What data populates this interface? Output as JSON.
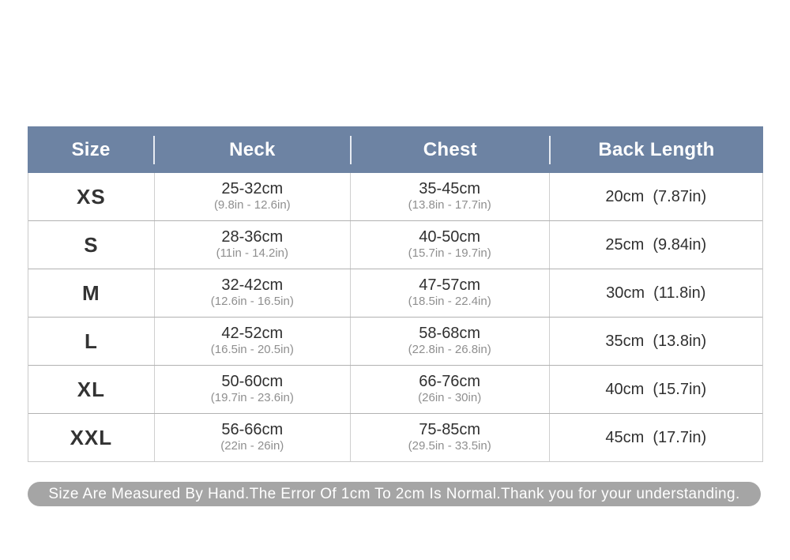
{
  "colors": {
    "header_bg": "#6d83a3",
    "header_text": "#ffffff",
    "row_border": "#b2b2b2",
    "footer_bg": "#a5a5a5",
    "main_text": "#303030",
    "sub_text": "#8f8f8f"
  },
  "table": {
    "headers": {
      "size": "Size",
      "neck": "Neck",
      "chest": "Chest",
      "back_length": "Back Length"
    },
    "rows": [
      {
        "size": "XS",
        "neck_cm": "25-32cm",
        "neck_in": "(9.8in - 12.6in)",
        "chest_cm": "35-45cm",
        "chest_in": "(13.8in - 17.7in)",
        "back": "20cm  (7.87in)"
      },
      {
        "size": "S",
        "neck_cm": "28-36cm",
        "neck_in": "(11in - 14.2in)",
        "chest_cm": "40-50cm",
        "chest_in": "(15.7in - 19.7in)",
        "back": "25cm  (9.84in)"
      },
      {
        "size": "M",
        "neck_cm": "32-42cm",
        "neck_in": "(12.6in - 16.5in)",
        "chest_cm": "47-57cm",
        "chest_in": "(18.5in - 22.4in)",
        "back": "30cm  (11.8in)"
      },
      {
        "size": "L",
        "neck_cm": "42-52cm",
        "neck_in": "(16.5in - 20.5in)",
        "chest_cm": "58-68cm",
        "chest_in": "(22.8in - 26.8in)",
        "back": "35cm  (13.8in)"
      },
      {
        "size": "XL",
        "neck_cm": "50-60cm",
        "neck_in": "(19.7in - 23.6in)",
        "chest_cm": "66-76cm",
        "chest_in": "(26in - 30in)",
        "back": "40cm  (15.7in)"
      },
      {
        "size": "XXL",
        "neck_cm": "56-66cm",
        "neck_in": "(22in - 26in)",
        "chest_cm": "75-85cm",
        "chest_in": "(29.5in - 33.5in)",
        "back": "45cm  (17.7in)"
      }
    ]
  },
  "footer": {
    "note": "Size Are Measured By Hand.The Error Of 1cm To 2cm Is Normal.Thank you for your understanding."
  },
  "chart_data": {
    "type": "table",
    "title": "Size Chart",
    "columns": [
      "Size",
      "Neck",
      "Chest",
      "Back Length"
    ],
    "rows": [
      [
        "XS",
        "25-32cm (9.8in - 12.6in)",
        "35-45cm (13.8in - 17.7in)",
        "20cm (7.87in)"
      ],
      [
        "S",
        "28-36cm (11in - 14.2in)",
        "40-50cm (15.7in - 19.7in)",
        "25cm (9.84in)"
      ],
      [
        "M",
        "32-42cm (12.6in - 16.5in)",
        "47-57cm (18.5in - 22.4in)",
        "30cm (11.8in)"
      ],
      [
        "L",
        "42-52cm (16.5in - 20.5in)",
        "58-68cm (22.8in - 26.8in)",
        "35cm (13.8in)"
      ],
      [
        "XL",
        "50-60cm (19.7in - 23.6in)",
        "66-76cm (26in - 30in)",
        "40cm (15.7in)"
      ],
      [
        "XXL",
        "56-66cm (22in - 26in)",
        "75-85cm (29.5in - 33.5in)",
        "45cm (17.7in)"
      ]
    ],
    "footnote": "Size Are Measured By Hand.The Error Of 1cm To 2cm Is Normal.Thank you for your understanding."
  }
}
